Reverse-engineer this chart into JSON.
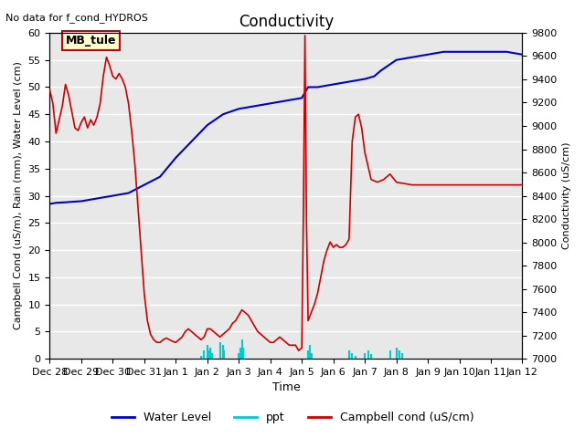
{
  "title": "Conductivity",
  "top_left_text": "No data for f_cond_HYDROS",
  "xlabel": "Time",
  "ylabel_left": "Campbell Cond (uS/m), Rain (mm), Water Level (cm)",
  "ylabel_right": "Conductivity (uS/cm)",
  "xlim_days": [
    0,
    15
  ],
  "ylim_left": [
    0,
    60
  ],
  "ylim_right": [
    7000,
    9800
  ],
  "xtick_labels": [
    "Dec 28",
    "Dec 29",
    "Dec 30",
    "Dec 31",
    "Jan 1",
    "Jan 2",
    "Jan 3",
    "Jan 4",
    "Jan 5",
    "Jan 6",
    "Jan 7",
    "Jan 8",
    "Jan 9",
    "Jan 10",
    "Jan 11",
    "Jan 12"
  ],
  "xtick_positions": [
    0,
    1,
    2,
    3,
    4,
    5,
    6,
    7,
    8,
    9,
    10,
    11,
    12,
    13,
    14,
    15
  ],
  "yticks_left": [
    0,
    5,
    10,
    15,
    20,
    25,
    30,
    35,
    40,
    45,
    50,
    55,
    60
  ],
  "yticks_right": [
    7000,
    7200,
    7400,
    7600,
    7800,
    8000,
    8200,
    8400,
    8600,
    8800,
    9000,
    9200,
    9400,
    9600,
    9800
  ],
  "bg_color": "#e8e8e8",
  "grid_color": "white",
  "water_level_color": "#0000cc",
  "ppt_color": "#00cccc",
  "campbell_color": "#cc0000",
  "legend_box_color": "#ffffcc",
  "legend_box_text": "MB_tule",
  "water_level_x": [
    0,
    0.2,
    0.5,
    1.0,
    1.5,
    2.0,
    2.5,
    3.0,
    3.5,
    4.0,
    4.5,
    5.0,
    5.5,
    6.0,
    6.5,
    7.0,
    7.5,
    8.0,
    8.2,
    8.5,
    9.0,
    9.5,
    10.0,
    10.3,
    10.5,
    11.0,
    11.5,
    12.0,
    12.5,
    13.0,
    13.5,
    14.0,
    14.5,
    15.0
  ],
  "water_level_y": [
    28.5,
    28.7,
    28.8,
    29.0,
    29.5,
    30.0,
    30.5,
    32.0,
    33.5,
    37.0,
    40.0,
    43.0,
    45.0,
    46.0,
    46.5,
    47.0,
    47.5,
    48.0,
    50.0,
    50.0,
    50.5,
    51.0,
    51.5,
    52.0,
    53.0,
    55.0,
    55.5,
    56.0,
    56.5,
    56.5,
    56.5,
    56.5,
    56.5,
    56.0
  ],
  "ppt_x": [
    4.8,
    4.9,
    5.0,
    5.05,
    5.1,
    5.15,
    5.4,
    5.42,
    5.5,
    5.52,
    6.0,
    6.05,
    6.1,
    6.15,
    8.2,
    8.25,
    8.3,
    9.5,
    9.6,
    9.7,
    10.0,
    10.1,
    10.2,
    10.8,
    11.0,
    11.1,
    11.2
  ],
  "ppt_y": [
    0.5,
    1.5,
    2.5,
    1.5,
    2.0,
    1.0,
    2.5,
    3.0,
    2.5,
    1.5,
    1.0,
    2.0,
    3.5,
    2.0,
    1.5,
    2.5,
    1.0,
    1.5,
    1.0,
    0.5,
    1.0,
    1.5,
    0.8,
    1.5,
    2.0,
    1.5,
    1.0
  ],
  "campbell_x": [
    0,
    0.1,
    0.2,
    0.3,
    0.4,
    0.5,
    0.6,
    0.7,
    0.8,
    0.9,
    1.0,
    1.1,
    1.2,
    1.3,
    1.4,
    1.5,
    1.6,
    1.7,
    1.8,
    1.9,
    2.0,
    2.1,
    2.2,
    2.3,
    2.4,
    2.5,
    2.6,
    2.7,
    2.8,
    2.9,
    3.0,
    3.1,
    3.2,
    3.3,
    3.4,
    3.5,
    3.6,
    3.7,
    3.8,
    3.9,
    4.0,
    4.1,
    4.2,
    4.3,
    4.4,
    4.5,
    4.6,
    4.7,
    4.8,
    4.9,
    5.0,
    5.1,
    5.2,
    5.3,
    5.4,
    5.5,
    5.6,
    5.7,
    5.8,
    5.9,
    6.0,
    6.1,
    6.2,
    6.3,
    6.4,
    6.5,
    6.6,
    6.7,
    6.8,
    6.9,
    7.0,
    7.1,
    7.2,
    7.3,
    7.4,
    7.5,
    7.6,
    7.7,
    7.8,
    7.9,
    8.0,
    8.05,
    8.1,
    8.15,
    8.2,
    8.3,
    8.4,
    8.5,
    8.6,
    8.7,
    8.8,
    8.9,
    9.0,
    9.1,
    9.2,
    9.3,
    9.4,
    9.5,
    9.6,
    9.7,
    9.8,
    9.9,
    10.0,
    10.2,
    10.4,
    10.6,
    10.8,
    11.0,
    11.5,
    12.0,
    12.5,
    13.0,
    13.5,
    14.0,
    14.5,
    15.0
  ],
  "campbell_y": [
    49.5,
    47.0,
    41.5,
    44.0,
    46.5,
    50.5,
    48.5,
    45.5,
    42.5,
    42.0,
    43.5,
    44.5,
    42.5,
    44.0,
    43.0,
    44.5,
    47.0,
    52.0,
    55.5,
    54.0,
    52.0,
    51.5,
    52.5,
    51.5,
    50.0,
    47.0,
    42.0,
    36.0,
    28.0,
    20.0,
    12.0,
    7.0,
    4.5,
    3.5,
    3.0,
    3.0,
    3.5,
    3.8,
    3.5,
    3.2,
    3.0,
    3.5,
    4.0,
    5.0,
    5.5,
    5.0,
    4.5,
    4.0,
    3.5,
    4.0,
    5.5,
    5.5,
    5.0,
    4.5,
    4.0,
    4.5,
    5.0,
    5.5,
    6.5,
    7.0,
    8.0,
    9.0,
    8.5,
    8.0,
    7.0,
    6.0,
    5.0,
    4.5,
    4.0,
    3.5,
    3.0,
    3.0,
    3.5,
    4.0,
    3.5,
    3.0,
    2.5,
    2.5,
    2.5,
    1.5,
    2.0,
    26.5,
    59.5,
    25.0,
    7.0,
    8.5,
    10.0,
    12.0,
    15.0,
    18.0,
    20.0,
    21.5,
    20.5,
    21.0,
    20.5,
    20.5,
    21.0,
    22.0,
    40.0,
    44.5,
    45.0,
    42.5,
    38.0,
    33.0,
    32.5,
    33.0,
    34.0,
    32.5,
    32.0,
    32.0,
    32.0,
    32.0,
    32.0,
    32.0,
    32.0,
    32.0
  ]
}
